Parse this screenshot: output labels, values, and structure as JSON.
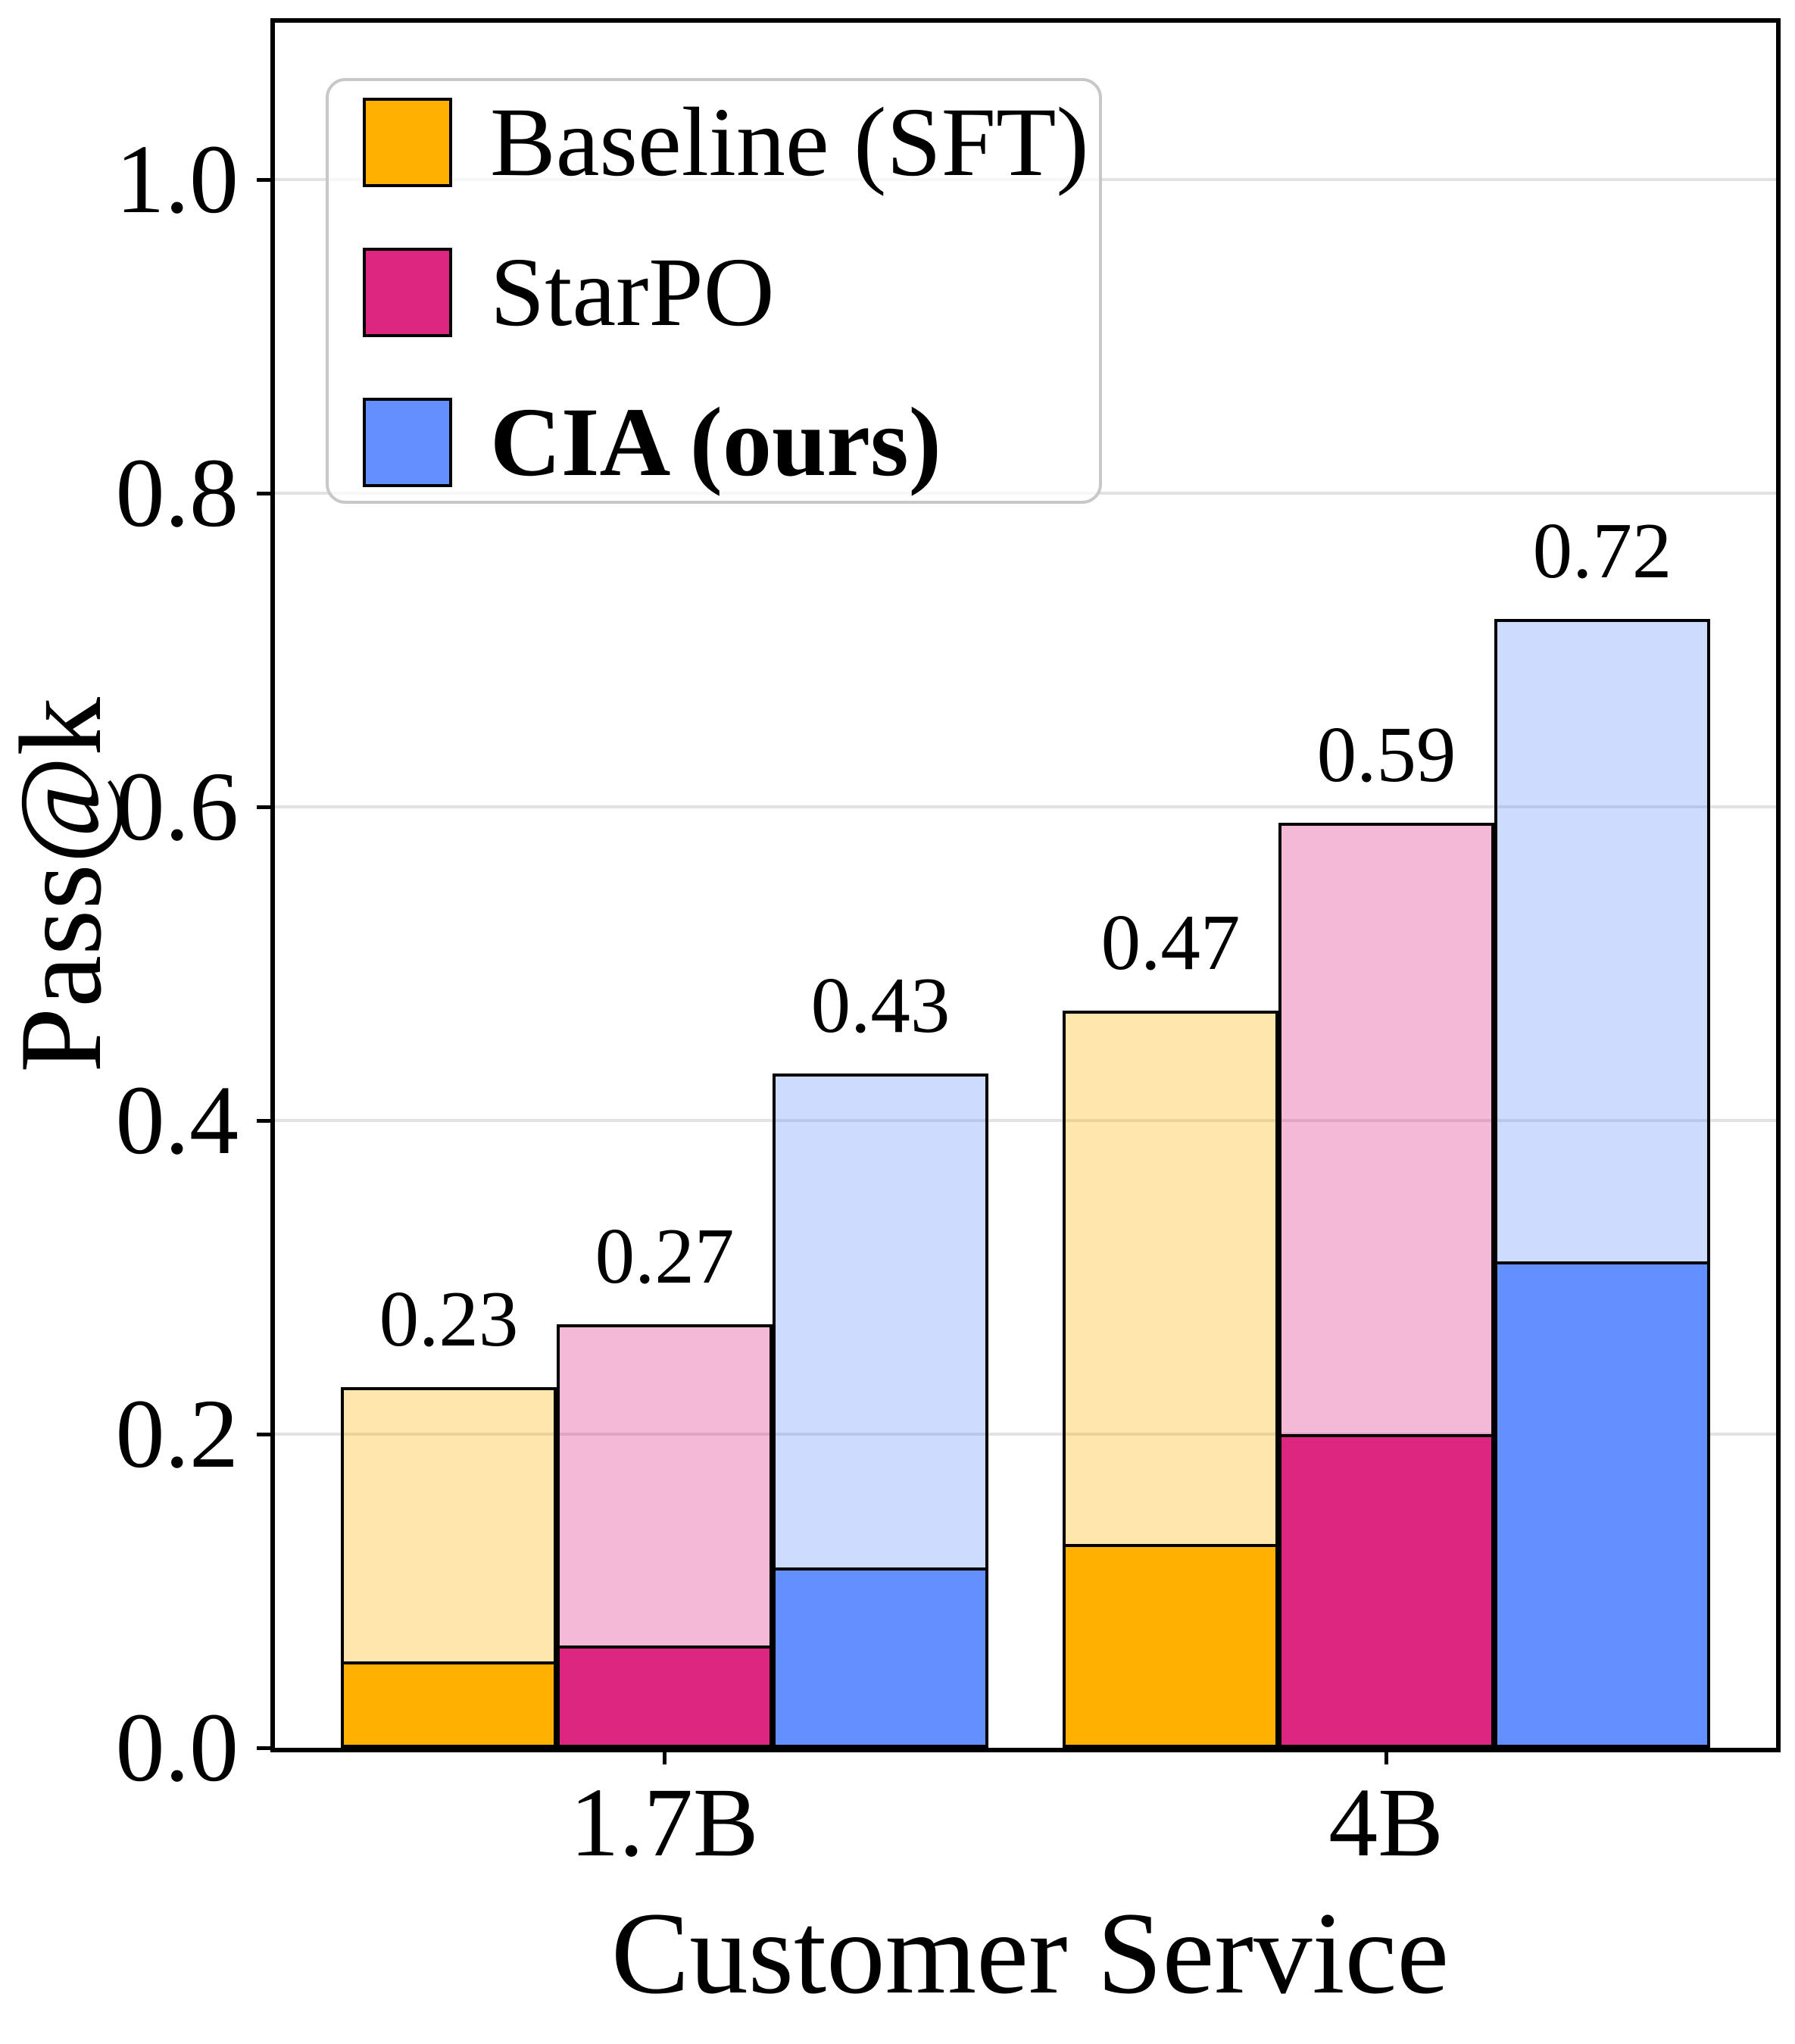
{
  "chart_data": {
    "type": "bar",
    "title": "",
    "xlabel": "Customer Service",
    "ylabel": "Pass@k",
    "categories": [
      "1.7B",
      "4B"
    ],
    "series": [
      {
        "name": "Baseline (SFT)",
        "emphasis": false,
        "color": "#FFB000",
        "passk_values": [
          0.23,
          0.47
        ],
        "passk_labels": [
          "0.23",
          "0.47"
        ],
        "pass1_values": [
          0.055,
          0.13
        ]
      },
      {
        "name": "StarPO",
        "emphasis": false,
        "color": "#DC267F",
        "passk_values": [
          0.27,
          0.59
        ],
        "passk_labels": [
          "0.27",
          "0.59"
        ],
        "pass1_values": [
          0.065,
          0.2
        ]
      },
      {
        "name": "CIA (ours)",
        "emphasis": true,
        "color": "#648FFF",
        "passk_values": [
          0.43,
          0.72
        ],
        "passk_labels": [
          "0.43",
          "0.72"
        ],
        "pass1_values": [
          0.115,
          0.31
        ]
      }
    ],
    "ylim": [
      0,
      1.095
    ],
    "yticks": [
      0.0,
      0.2,
      0.4,
      0.6,
      0.8,
      1.0
    ],
    "ytick_labels": [
      "0.0",
      "0.2",
      "0.4",
      "0.6",
      "0.8",
      "1.0"
    ],
    "grid": true,
    "legend_position": "upper-left",
    "light_fill_alpha": 0.32,
    "bar_edge_color": "#000000"
  }
}
